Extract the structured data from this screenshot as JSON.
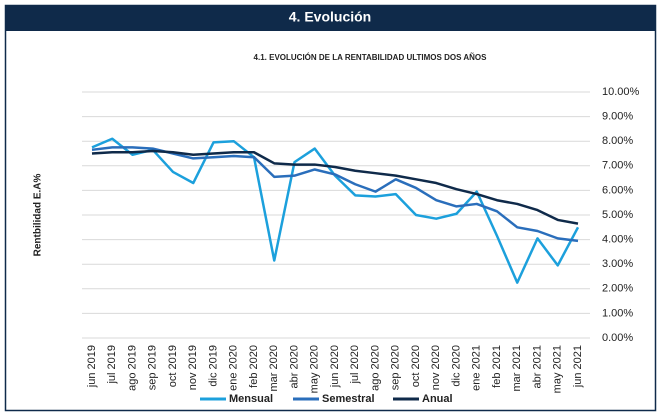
{
  "header": {
    "title": "4. Evolución"
  },
  "chart_data": {
    "type": "line",
    "title": "4.1. EVOLUCIÓN DE LA RENTABILIDAD ULTIMOS DOS AÑOS",
    "y_label": "Rentbilidad E.A%",
    "categories": [
      "jun 2019",
      "jul 2019",
      "ago 2019",
      "sep 2019",
      "oct 2019",
      "nov 2019",
      "dic 2019",
      "ene 2020",
      "feb 2020",
      "mar 2020",
      "abr 2020",
      "may 2020",
      "jun 2020",
      "jul 2020",
      "ago 2020",
      "sep 2020",
      "oct 2020",
      "nov 2020",
      "dic 2020",
      "ene 2021",
      "feb 2021",
      "mar 2021",
      "abr 2021",
      "may 2021",
      "jun 2021"
    ],
    "series": [
      {
        "name": "Mensual",
        "color": "#1ca0dc",
        "values": [
          7.75,
          8.1,
          7.45,
          7.65,
          6.75,
          6.3,
          7.95,
          8.0,
          7.35,
          3.15,
          7.15,
          7.7,
          6.6,
          5.8,
          5.75,
          5.85,
          5.0,
          4.85,
          5.05,
          5.95,
          4.15,
          2.25,
          4.05,
          2.95,
          4.5
        ]
      },
      {
        "name": "Semestral",
        "color": "#2a6ebb",
        "values": [
          7.65,
          7.75,
          7.75,
          7.7,
          7.5,
          7.3,
          7.35,
          7.4,
          7.35,
          6.55,
          6.6,
          6.85,
          6.65,
          6.25,
          5.95,
          6.45,
          6.1,
          5.6,
          5.35,
          5.45,
          5.15,
          4.5,
          4.35,
          4.05,
          3.95
        ]
      },
      {
        "name": "Anual",
        "color": "#0f2a4a",
        "values": [
          7.5,
          7.55,
          7.55,
          7.6,
          7.55,
          7.45,
          7.5,
          7.55,
          7.55,
          7.1,
          7.05,
          7.05,
          6.95,
          6.8,
          6.7,
          6.6,
          6.45,
          6.3,
          6.05,
          5.85,
          5.6,
          5.45,
          5.2,
          4.8,
          4.65
        ]
      }
    ],
    "ylim": [
      0,
      10
    ],
    "yticks": [
      {
        "value": 0,
        "label": "0.00%"
      },
      {
        "value": 1,
        "label": "1.00%"
      },
      {
        "value": 2,
        "label": "2.00%"
      },
      {
        "value": 3,
        "label": "3.00%"
      },
      {
        "value": 4,
        "label": "4.00%"
      },
      {
        "value": 5,
        "label": "5.00%"
      },
      {
        "value": 6,
        "label": "6.00%"
      },
      {
        "value": 7,
        "label": "7.00%"
      },
      {
        "value": 8,
        "label": "8.00%"
      },
      {
        "value": 9,
        "label": "9.00%"
      },
      {
        "value": 10,
        "label": "10.00%"
      }
    ],
    "grid": true,
    "legend": "bottom"
  }
}
